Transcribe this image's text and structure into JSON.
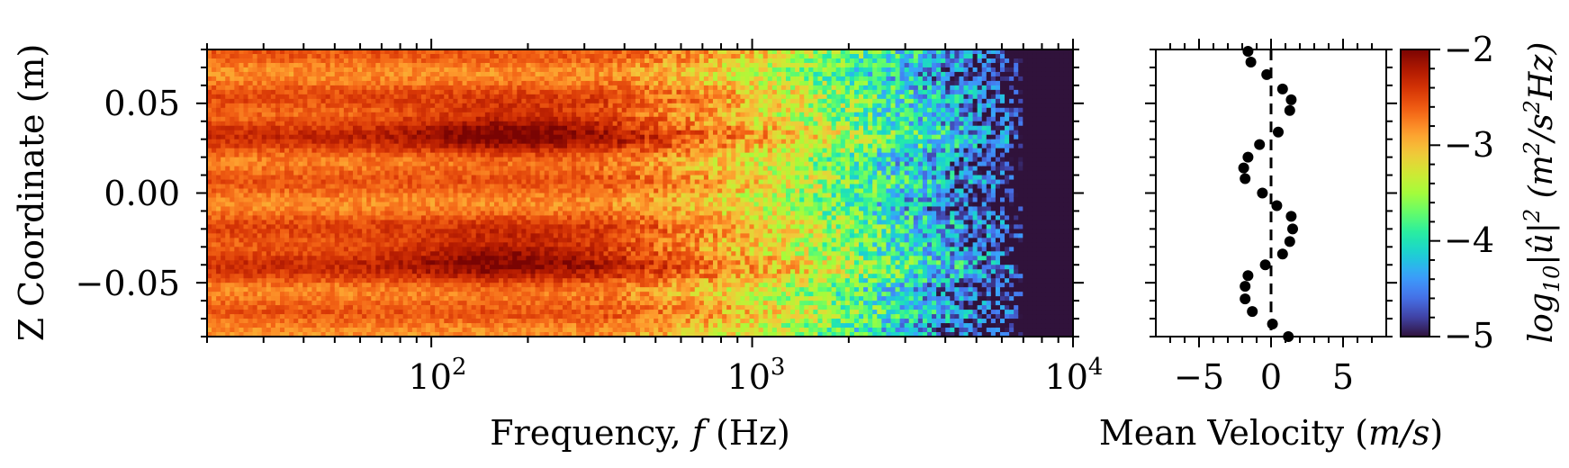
{
  "chart_data": [
    {
      "type": "heatmap",
      "xlabel": "Frequency, f (Hz)",
      "ylabel": "Z Coordinate (m)",
      "xscale": "log",
      "xlim": [
        20,
        10000
      ],
      "ylim": [
        -0.08,
        0.08
      ],
      "x_ticks": [
        100,
        1000,
        10000
      ],
      "x_tick_labels": [
        "10",
        "10",
        "10"
      ],
      "x_tick_exponents": [
        "2",
        "3",
        "4"
      ],
      "y_ticks": [
        0.05,
        0.0,
        -0.05
      ],
      "y_tick_labels": [
        "0.05",
        "0.00",
        "−0.05"
      ],
      "colorscale": "turbo",
      "value_range": [
        -5,
        -2
      ],
      "zones": [
        {
          "z_min": 0.02,
          "z_max": 0.05,
          "f_peak": 180,
          "peak_value": -2.1
        },
        {
          "z_min": -0.05,
          "z_max": -0.02,
          "f_peak": 170,
          "peak_value": -2.2
        }
      ],
      "background_level_low_freq": -2.7,
      "rolloff_start_hz": 300,
      "floor_start_hz": 7000,
      "floor_value": -5
    },
    {
      "type": "scatter",
      "xlabel": "Mean Velocity (m/s)",
      "xlim": [
        -8,
        8
      ],
      "ylim": [
        -0.08,
        0.08
      ],
      "x_ticks": [
        -5,
        0,
        5
      ],
      "x_tick_labels": [
        "−5",
        "0",
        "5"
      ],
      "reference_line_x": 0,
      "points": [
        {
          "x": -1.6,
          "y": 0.079
        },
        {
          "x": -1.4,
          "y": 0.073
        },
        {
          "x": -0.3,
          "y": 0.066
        },
        {
          "x": 0.8,
          "y": 0.058
        },
        {
          "x": 1.4,
          "y": 0.052
        },
        {
          "x": 1.3,
          "y": 0.046
        },
        {
          "x": 0.5,
          "y": 0.034
        },
        {
          "x": -0.8,
          "y": 0.027
        },
        {
          "x": -1.6,
          "y": 0.02
        },
        {
          "x": -1.9,
          "y": 0.014
        },
        {
          "x": -1.8,
          "y": 0.008
        },
        {
          "x": -0.6,
          "y": 0.0
        },
        {
          "x": 0.4,
          "y": -0.007
        },
        {
          "x": 1.4,
          "y": -0.013
        },
        {
          "x": 1.5,
          "y": -0.02
        },
        {
          "x": 1.3,
          "y": -0.027
        },
        {
          "x": 0.8,
          "y": -0.034
        },
        {
          "x": -0.4,
          "y": -0.04
        },
        {
          "x": -1.6,
          "y": -0.046
        },
        {
          "x": -1.8,
          "y": -0.052
        },
        {
          "x": -1.8,
          "y": -0.059
        },
        {
          "x": -1.3,
          "y": -0.066
        },
        {
          "x": 0.1,
          "y": -0.073
        },
        {
          "x": 1.2,
          "y": -0.08
        }
      ]
    }
  ],
  "colorbar": {
    "label": "log10|û|² (m²/s²Hz)",
    "ticks": [
      -2,
      -3,
      -4,
      -5
    ],
    "tick_labels": [
      "−2",
      "−3",
      "−4",
      "−5"
    ]
  }
}
